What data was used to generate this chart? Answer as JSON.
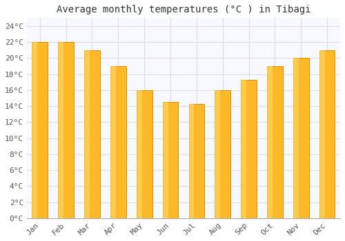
{
  "title": "Average monthly temperatures (°C ) in Tibagi",
  "months": [
    "Jan",
    "Feb",
    "Mar",
    "Apr",
    "May",
    "Jun",
    "Jul",
    "Aug",
    "Sep",
    "Oct",
    "Nov",
    "Dec"
  ],
  "values": [
    22,
    22,
    21,
    19,
    16,
    14.5,
    14.3,
    16,
    17.3,
    19,
    20,
    21
  ],
  "bar_color_light": "#FFD966",
  "bar_color_main": "#FDB827",
  "bar_color_edge": "#D4900A",
  "ylim": [
    0,
    25
  ],
  "yticks": [
    0,
    2,
    4,
    6,
    8,
    10,
    12,
    14,
    16,
    18,
    20,
    22,
    24
  ],
  "ytick_labels": [
    "0°C",
    "2°C",
    "4°C",
    "6°C",
    "8°C",
    "10°C",
    "12°C",
    "14°C",
    "16°C",
    "18°C",
    "20°C",
    "22°C",
    "24°C"
  ],
  "bg_color": "#ffffff",
  "plot_bg_color": "#f8f8ff",
  "grid_color": "#ddddee",
  "title_fontsize": 10,
  "tick_fontsize": 8,
  "bar_width": 0.6
}
